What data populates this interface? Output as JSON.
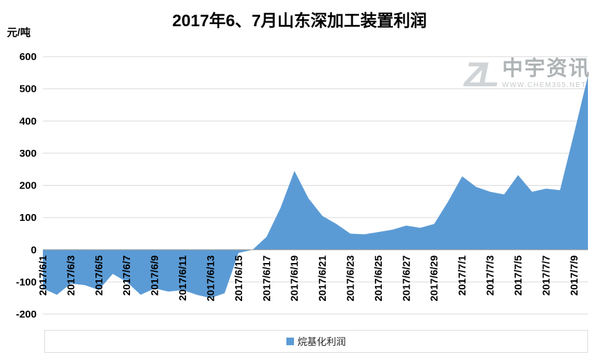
{
  "watermark": {
    "logo": "ZL",
    "name": "中宇资讯",
    "url": "WWW.CHEM365.NET"
  },
  "chart_data": {
    "type": "area",
    "title": "2017年6、7月山东深加工装置利润",
    "ylabel": "元/吨",
    "xlabel": "",
    "ylim": [
      -200,
      600
    ],
    "ytick_step": 100,
    "grid": true,
    "legend": "烷基化利润",
    "legend_position": "bottom",
    "series_color": "#5B9BD5",
    "grid_color": "#d9d9d9",
    "axis_color": "#9b9b9b",
    "x_tick_every": 2,
    "categories": [
      "2017/6/1",
      "2017/6/2",
      "2017/6/3",
      "2017/6/4",
      "2017/6/5",
      "2017/6/6",
      "2017/6/7",
      "2017/6/8",
      "2017/6/9",
      "2017/6/10",
      "2017/6/11",
      "2017/6/12",
      "2017/6/13",
      "2017/6/14",
      "2017/6/15",
      "2017/6/16",
      "2017/6/17",
      "2017/6/18",
      "2017/6/19",
      "2017/6/20",
      "2017/6/21",
      "2017/6/22",
      "2017/6/23",
      "2017/6/24",
      "2017/6/25",
      "2017/6/26",
      "2017/6/27",
      "2017/6/28",
      "2017/6/29",
      "2017/6/30",
      "2017/7/1",
      "2017/7/2",
      "2017/7/3",
      "2017/7/4",
      "2017/7/5",
      "2017/7/6",
      "2017/7/7",
      "2017/7/8",
      "2017/7/9",
      "2017/7/10"
    ],
    "values": [
      -120,
      -140,
      -105,
      -110,
      -125,
      -75,
      -100,
      -140,
      -120,
      -130,
      -125,
      -140,
      -150,
      -135,
      -10,
      0,
      40,
      130,
      245,
      160,
      105,
      80,
      50,
      48,
      55,
      62,
      75,
      68,
      80,
      150,
      228,
      195,
      180,
      172,
      232,
      180,
      190,
      185,
      360,
      540
    ]
  }
}
